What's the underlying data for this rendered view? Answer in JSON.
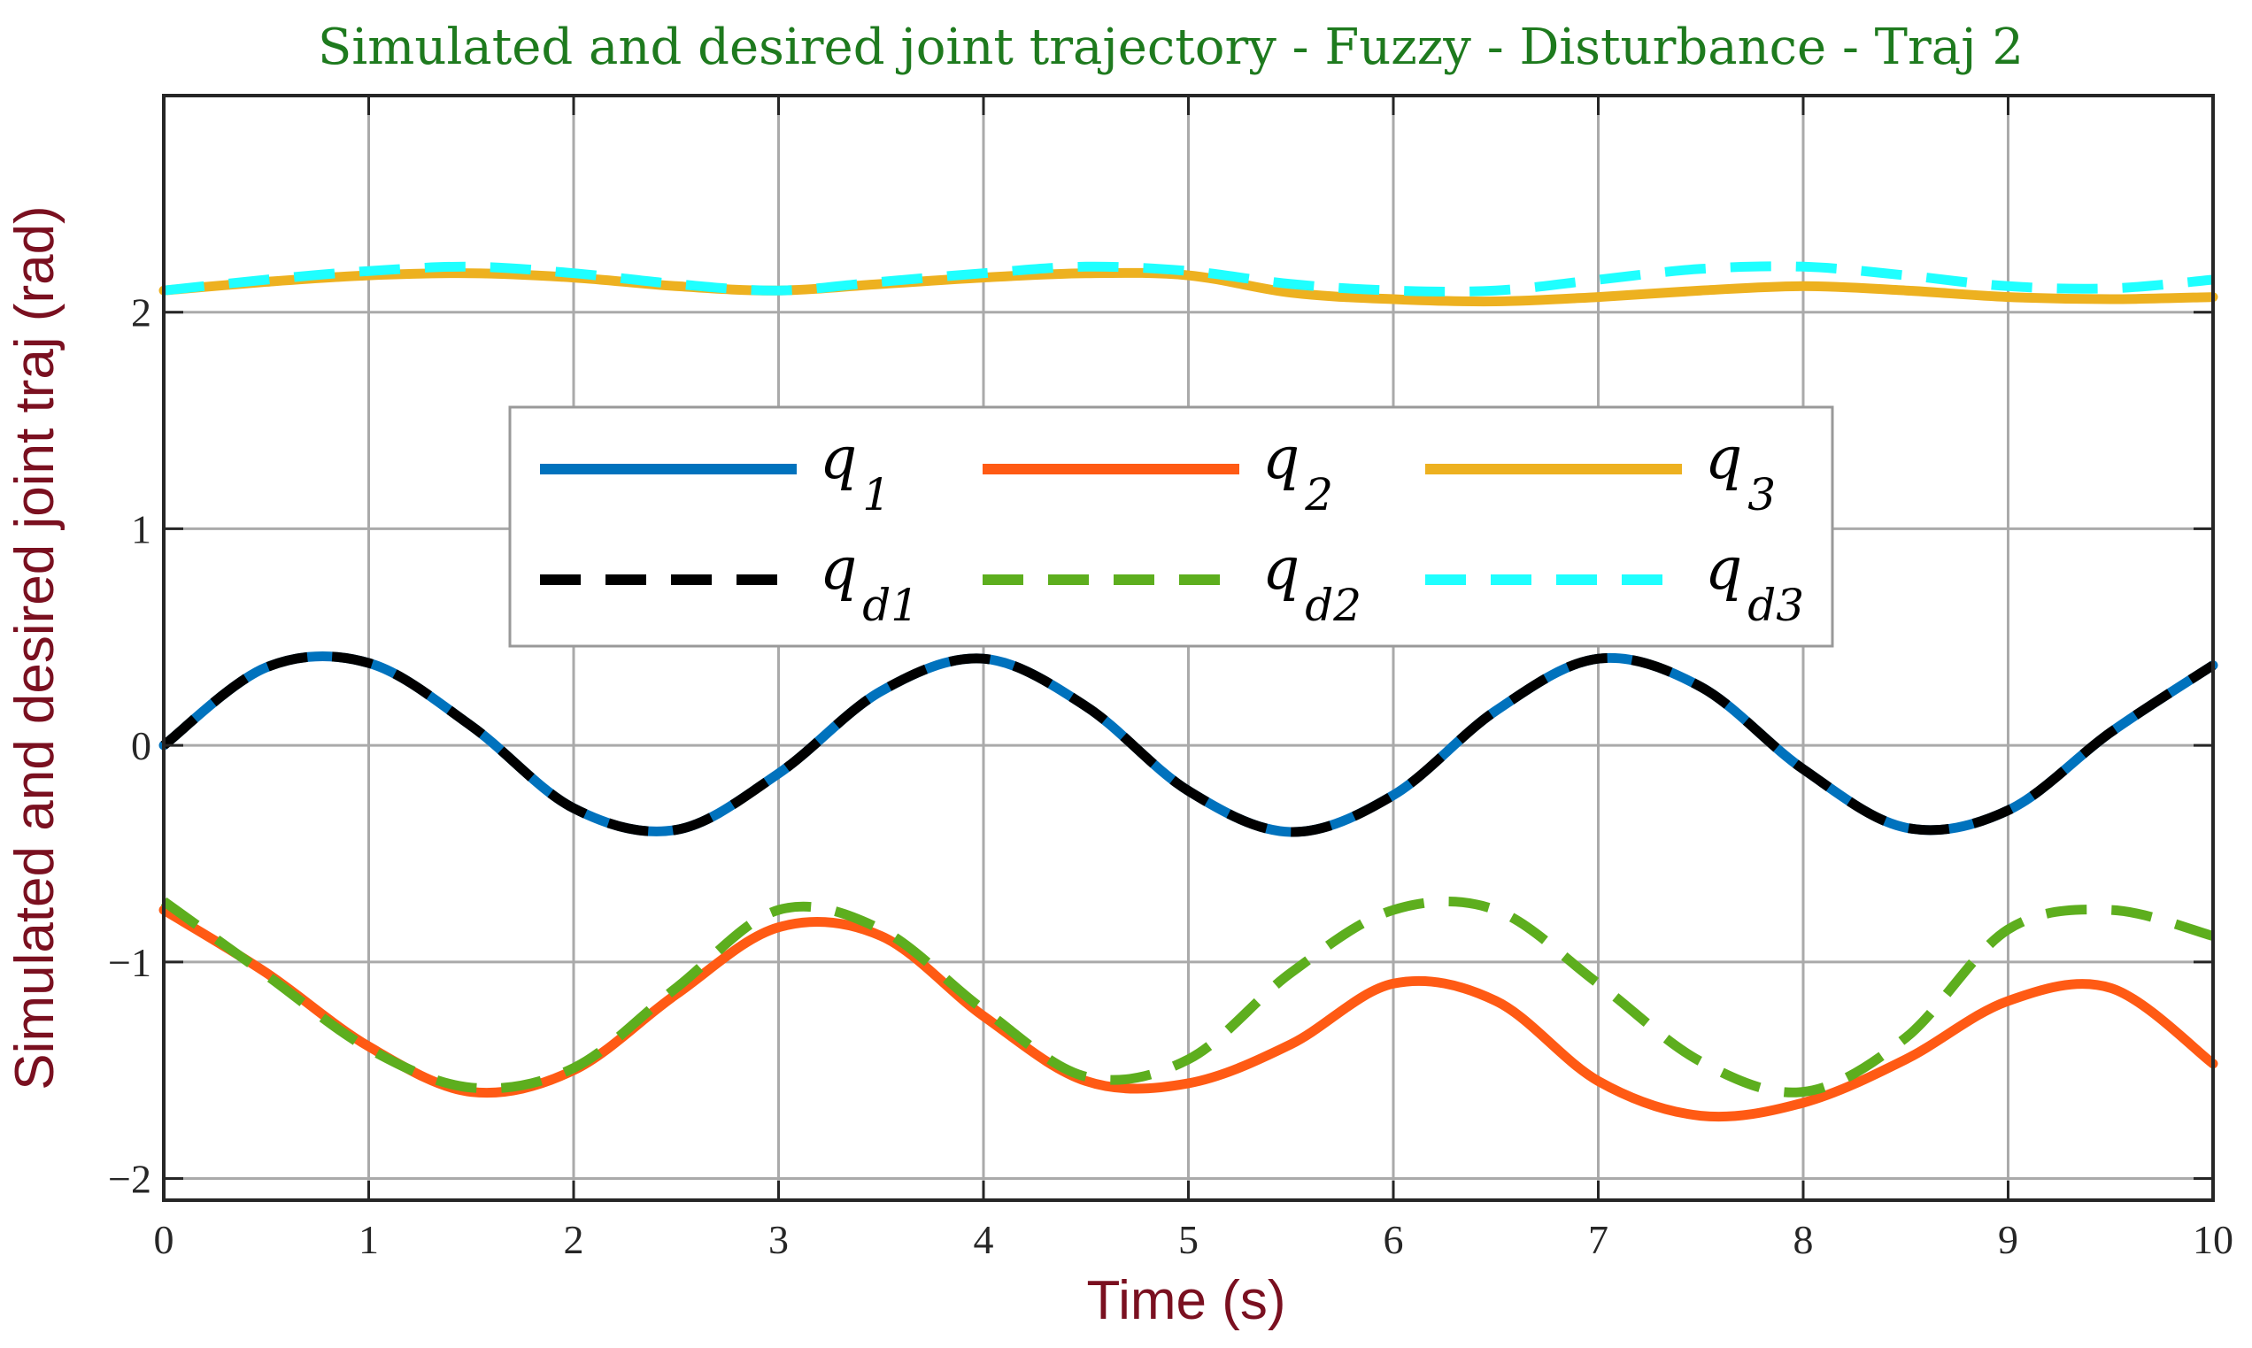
{
  "chart_data": {
    "type": "line",
    "title": "Simulated and desired joint trajectory - Fuzzy - Disturbance - Traj 2",
    "xlabel": "Time (s)",
    "ylabel": "Simulated and desired joint traj (rad)",
    "xlim": [
      0,
      10
    ],
    "ylim": [
      -2.1,
      3.0
    ],
    "xticks": [
      0,
      1,
      2,
      3,
      4,
      5,
      6,
      7,
      8,
      9,
      10
    ],
    "yticks": [
      -2,
      -1,
      0,
      1,
      2
    ],
    "ytick_labels": [
      "−2",
      "−1",
      "0",
      "1",
      "2"
    ],
    "grid": true,
    "legend": {
      "placement": "center",
      "columns": 3,
      "entries": [
        {
          "series": "q1",
          "base": "q",
          "sub": "1"
        },
        {
          "series": "q2",
          "base": "q",
          "sub": "2"
        },
        {
          "series": "q3",
          "base": "q",
          "sub": "3"
        },
        {
          "series": "qd1",
          "base": "q",
          "sub": "d1"
        },
        {
          "series": "qd2",
          "base": "q",
          "sub": "d2"
        },
        {
          "series": "qd3",
          "base": "q",
          "sub": "d3"
        }
      ]
    },
    "x": [
      0,
      0.5,
      1,
      1.5,
      2,
      2.5,
      3,
      3.5,
      4,
      4.5,
      5,
      5.5,
      6,
      6.5,
      7,
      7.5,
      8,
      8.5,
      9,
      9.5,
      10
    ],
    "series": [
      {
        "name": "q1",
        "color": "#0072BD",
        "dash": "solid",
        "y": [
          0.0,
          0.36,
          0.38,
          0.09,
          -0.29,
          -0.39,
          -0.13,
          0.25,
          0.4,
          0.18,
          -0.21,
          -0.4,
          -0.23,
          0.16,
          0.4,
          0.27,
          -0.11,
          -0.38,
          -0.3,
          0.06,
          0.37
        ]
      },
      {
        "name": "q2",
        "color": "#FF5A14",
        "dash": "solid",
        "y": [
          -0.76,
          -1.05,
          -1.39,
          -1.6,
          -1.5,
          -1.15,
          -0.84,
          -0.88,
          -1.25,
          -1.55,
          -1.56,
          -1.38,
          -1.1,
          -1.18,
          -1.55,
          -1.71,
          -1.65,
          -1.45,
          -1.18,
          -1.12,
          -1.47
        ]
      },
      {
        "name": "q3",
        "color": "#EDB120",
        "dash": "solid",
        "y": [
          2.1,
          2.14,
          2.17,
          2.18,
          2.16,
          2.12,
          2.1,
          2.13,
          2.16,
          2.18,
          2.17,
          2.09,
          2.06,
          2.05,
          2.07,
          2.1,
          2.12,
          2.1,
          2.07,
          2.06,
          2.07
        ]
      },
      {
        "name": "qd1",
        "color": "#000000",
        "dash": "dashed",
        "y": [
          0.0,
          0.36,
          0.38,
          0.09,
          -0.29,
          -0.39,
          -0.13,
          0.25,
          0.4,
          0.18,
          -0.21,
          -0.4,
          -0.23,
          0.16,
          0.4,
          0.27,
          -0.11,
          -0.38,
          -0.3,
          0.06,
          0.37
        ]
      },
      {
        "name": "qd2",
        "color": "#5DAE1E",
        "dash": "dashed",
        "y": [
          -0.72,
          -1.06,
          -1.4,
          -1.58,
          -1.49,
          -1.12,
          -0.76,
          -0.85,
          -1.22,
          -1.53,
          -1.45,
          -1.05,
          -0.76,
          -0.76,
          -1.1,
          -1.46,
          -1.6,
          -1.35,
          -0.85,
          -0.76,
          -0.88
        ]
      },
      {
        "name": "qd3",
        "color": "#1FFFFF",
        "dash": "dashed",
        "y": [
          2.1,
          2.15,
          2.19,
          2.21,
          2.18,
          2.13,
          2.1,
          2.14,
          2.18,
          2.21,
          2.19,
          2.13,
          2.1,
          2.1,
          2.15,
          2.2,
          2.21,
          2.17,
          2.12,
          2.11,
          2.15
        ]
      }
    ],
    "colors": {
      "title": "#1E7A1E",
      "axis_label": "#7A1020",
      "axes": "#262626",
      "grid": "#AAAAAA"
    }
  }
}
